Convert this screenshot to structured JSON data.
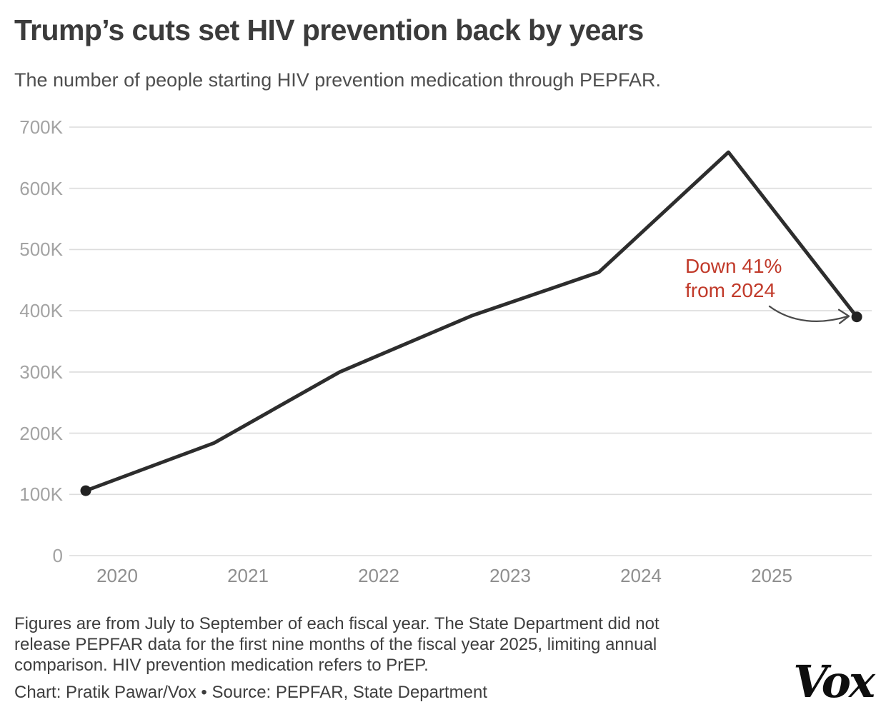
{
  "header": {
    "title": "Trump’s cuts set HIV prevention back by years",
    "subtitle": "The number of people starting HIV prevention medication through PEPFAR."
  },
  "chart_data": {
    "type": "line",
    "title": "Trump’s cuts set HIV prevention back by years",
    "subtitle": "The number of people starting HIV prevention medication through PEPFAR.",
    "xlabel": "",
    "ylabel": "",
    "x_tick_labels": [
      "2020",
      "2021",
      "2022",
      "2023",
      "2024",
      "2025"
    ],
    "x_tick_values": [
      2020,
      2021,
      2022,
      2023,
      2024,
      2025
    ],
    "y_tick_labels": [
      "0",
      "100K",
      "200K",
      "300K",
      "400K",
      "500K",
      "600K",
      "700K"
    ],
    "y_tick_values": [
      0,
      100000,
      200000,
      300000,
      400000,
      500000,
      600000,
      700000
    ],
    "ylim": [
      0,
      700000
    ],
    "grid": "horizontal",
    "legend": "none",
    "series": [
      {
        "name": "People starting HIV prevention medication (PrEP) through PEPFAR, July–September of each fiscal year",
        "points": [
          {
            "fiscal_year": "2019",
            "x": 2019.76,
            "value": 106000
          },
          {
            "fiscal_year": "2020",
            "x": 2020.74,
            "value": 184000
          },
          {
            "fiscal_year": "2021",
            "x": 2021.7,
            "value": 300000
          },
          {
            "fiscal_year": "2022",
            "x": 2022.71,
            "value": 392000
          },
          {
            "fiscal_year": "2023",
            "x": 2023.68,
            "value": 463000
          },
          {
            "fiscal_year": "2024",
            "x": 2024.67,
            "value": 659000
          },
          {
            "fiscal_year": "2025",
            "x": 2025.65,
            "value": 390000
          }
        ],
        "markers_on": [
          "first",
          "last"
        ]
      }
    ],
    "annotation": {
      "line1": "Down 41%",
      "line2": "from 2024",
      "points_to": "2025 data point"
    }
  },
  "footer": {
    "note_lines": [
      "Figures are from July to September of each fiscal year. The State Department did not",
      "release PEPFAR data for the first nine months of the fiscal year 2025, limiting annual",
      "comparison. HIV prevention medication refers to PrEP."
    ],
    "credit": "Chart: Pratik Pawar/Vox • Source: PEPFAR, State Department",
    "logo_text": "Vox"
  },
  "colors": {
    "background": "#ffffff",
    "line": "#2d2d2d",
    "marker": "#222222",
    "grid": "#dcdcdc",
    "y_axis_label": "#a3a3a3",
    "x_axis_label": "#8f8f8f",
    "title": "#3b3b3b",
    "subtitle": "#4e4e4e",
    "note": "#3e3e3e",
    "annotation_red": "#c13a2a",
    "arrow": "#4a4a4a",
    "logo": "#0e0e0e"
  }
}
